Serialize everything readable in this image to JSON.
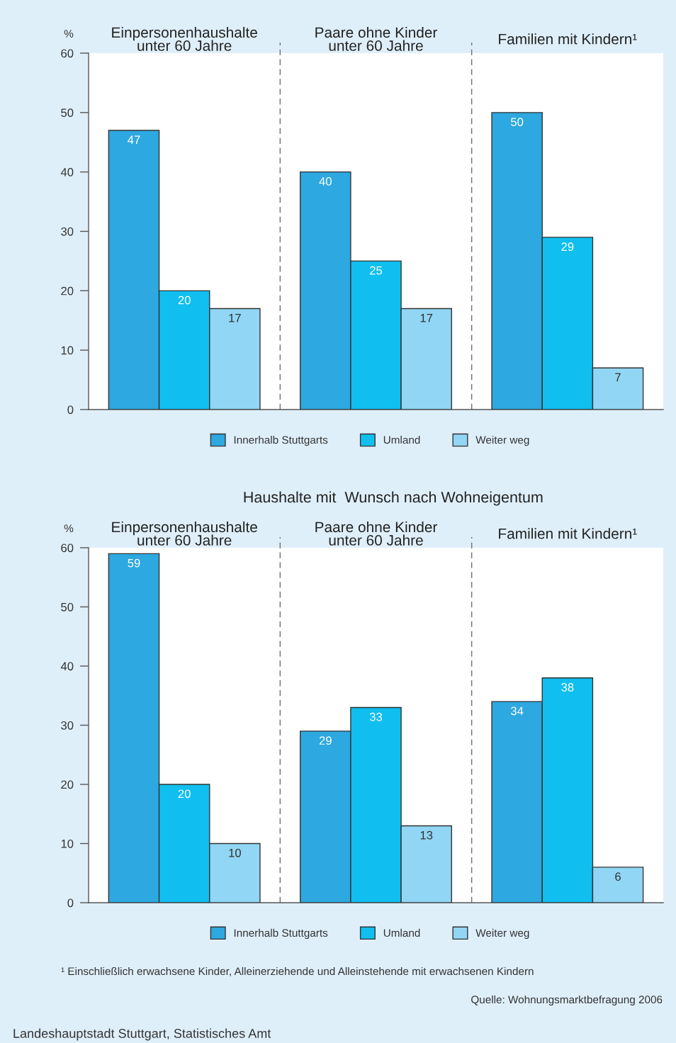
{
  "chart_data": [
    {
      "type": "bar",
      "ylabel": "%",
      "categories": [
        "Einpersonenhaushalte\nunter 60 Jahre",
        "Paare ohne Kinder\nunter 60 Jahre",
        "Familien mit Kindern¹"
      ],
      "series": [
        {
          "name": "Innerhalb Stuttgarts",
          "color": "#2ea8e0",
          "values": [
            47,
            40,
            50
          ]
        },
        {
          "name": "Umland",
          "color": "#10bfef",
          "values": [
            20,
            25,
            29
          ]
        },
        {
          "name": "Weiter weg",
          "color": "#91d6f4",
          "values": [
            17,
            17,
            7
          ]
        }
      ],
      "ylim": [
        0,
        60
      ],
      "yticks": [
        0,
        10,
        20,
        30,
        40,
        50,
        60
      ],
      "legend": "bottom",
      "data_labels": true
    },
    {
      "type": "bar",
      "title": "Haushalte mit  Wunsch nach Wohneigentum",
      "ylabel": "%",
      "categories": [
        "Einpersonenhaushalte\nunter 60 Jahre",
        "Paare ohne Kinder\nunter 60 Jahre",
        "Familien mit Kindern¹"
      ],
      "series": [
        {
          "name": "Innerhalb Stuttgarts",
          "color": "#2ea8e0",
          "values": [
            59,
            29,
            34
          ]
        },
        {
          "name": "Umland",
          "color": "#10bfef",
          "values": [
            20,
            33,
            38
          ]
        },
        {
          "name": "Weiter weg",
          "color": "#91d6f4",
          "values": [
            10,
            13,
            6
          ]
        }
      ],
      "ylim": [
        0,
        60
      ],
      "yticks": [
        0,
        10,
        20,
        30,
        40,
        50,
        60
      ],
      "legend": "bottom",
      "data_labels": true,
      "annotations": [
        "¹ Einschließlich erwachsene Kinder, Alleinerziehende und Alleinstehende mit erwachsenen Kindern",
        "Quelle: Wohnungsmarktbefragung 2006",
        "Landeshauptstadt Stuttgart, Statistisches Amt"
      ]
    }
  ]
}
